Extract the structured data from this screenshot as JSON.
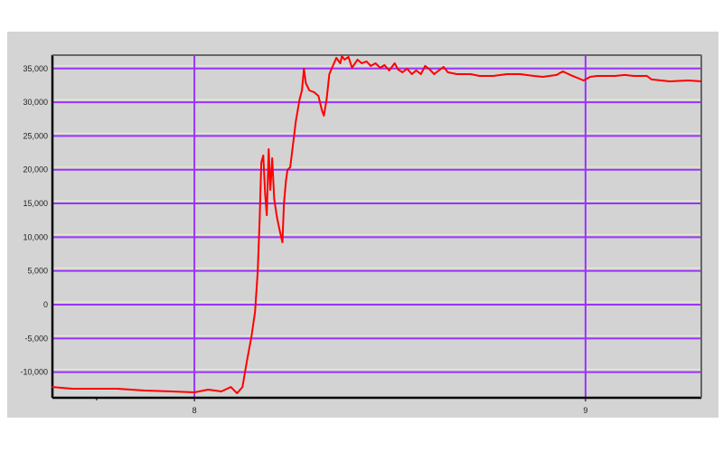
{
  "chart_data": {
    "type": "line",
    "title": "",
    "xlabel": "",
    "ylabel": "",
    "xlim": [
      7.637,
      9.296
    ],
    "ylim": [
      -13800,
      36980
    ],
    "grid": true,
    "legend": "none",
    "y_ticks": [
      35000,
      30000,
      25000,
      20000,
      15000,
      10000,
      5000,
      0,
      -5000,
      -10000
    ],
    "y_tick_labels": [
      "35,000",
      "30,000",
      "25,000",
      "20,000",
      "15,000",
      "10,000",
      "5,000",
      "0",
      "-5,000",
      "-10,000"
    ],
    "x_ticks": [
      8,
      9
    ],
    "x_tick_labels": [
      "8",
      "9"
    ],
    "colors": {
      "line": "#ff0000",
      "grid": "#9933ff",
      "background": "#d3d3d3",
      "frame": "#000000"
    },
    "series": [
      {
        "x": [
          7.637,
          7.688,
          7.734,
          7.803,
          7.873,
          7.942,
          8.0,
          8.035,
          8.069,
          8.093,
          8.109,
          8.123,
          8.134,
          8.146,
          8.155,
          8.162,
          8.167,
          8.171,
          8.176,
          8.181,
          8.185,
          8.19,
          8.194,
          8.199,
          8.204,
          8.211,
          8.218,
          8.225,
          8.229,
          8.234,
          8.238,
          8.245,
          8.252,
          8.259,
          8.269,
          8.275,
          8.28,
          8.285,
          8.294,
          8.306,
          8.317,
          8.326,
          8.331,
          8.338,
          8.345,
          8.352,
          8.363,
          8.373,
          8.377,
          8.384,
          8.394,
          8.403,
          8.417,
          8.428,
          8.44,
          8.451,
          8.463,
          8.475,
          8.486,
          8.498,
          8.512,
          8.521,
          8.532,
          8.544,
          8.556,
          8.567,
          8.579,
          8.59,
          8.602,
          8.613,
          8.625,
          8.637,
          8.648,
          8.671,
          8.706,
          8.729,
          8.764,
          8.799,
          8.833,
          8.868,
          8.891,
          8.926,
          8.942,
          8.961,
          8.984,
          8.995,
          9.012,
          9.03,
          9.076,
          9.1,
          9.123,
          9.157,
          9.169,
          9.215,
          9.262,
          9.296
        ],
        "y": [
          -12200,
          -12460,
          -12460,
          -12460,
          -12730,
          -12860,
          -13000,
          -12600,
          -12860,
          -12200,
          -13130,
          -12200,
          -8440,
          -4690,
          -1070,
          4960,
          13000,
          21040,
          22110,
          16350,
          13270,
          23050,
          17020,
          21710,
          15680,
          13000,
          10990,
          9250,
          15010,
          18360,
          19970,
          20370,
          23720,
          27070,
          30420,
          31760,
          34970,
          32830,
          31760,
          31490,
          30950,
          28810,
          28010,
          30420,
          34170,
          35110,
          36580,
          35780,
          36850,
          36310,
          36720,
          35110,
          36310,
          35780,
          36050,
          35380,
          35780,
          35110,
          35510,
          34710,
          35780,
          34840,
          34440,
          34970,
          34170,
          34710,
          34170,
          35380,
          34840,
          34170,
          34710,
          35240,
          34440,
          34170,
          34170,
          33900,
          33900,
          34170,
          34170,
          33900,
          33770,
          34040,
          34570,
          34040,
          33500,
          33230,
          33770,
          33900,
          33900,
          34040,
          33900,
          33900,
          33370,
          33100,
          33230,
          33100
        ]
      }
    ]
  }
}
